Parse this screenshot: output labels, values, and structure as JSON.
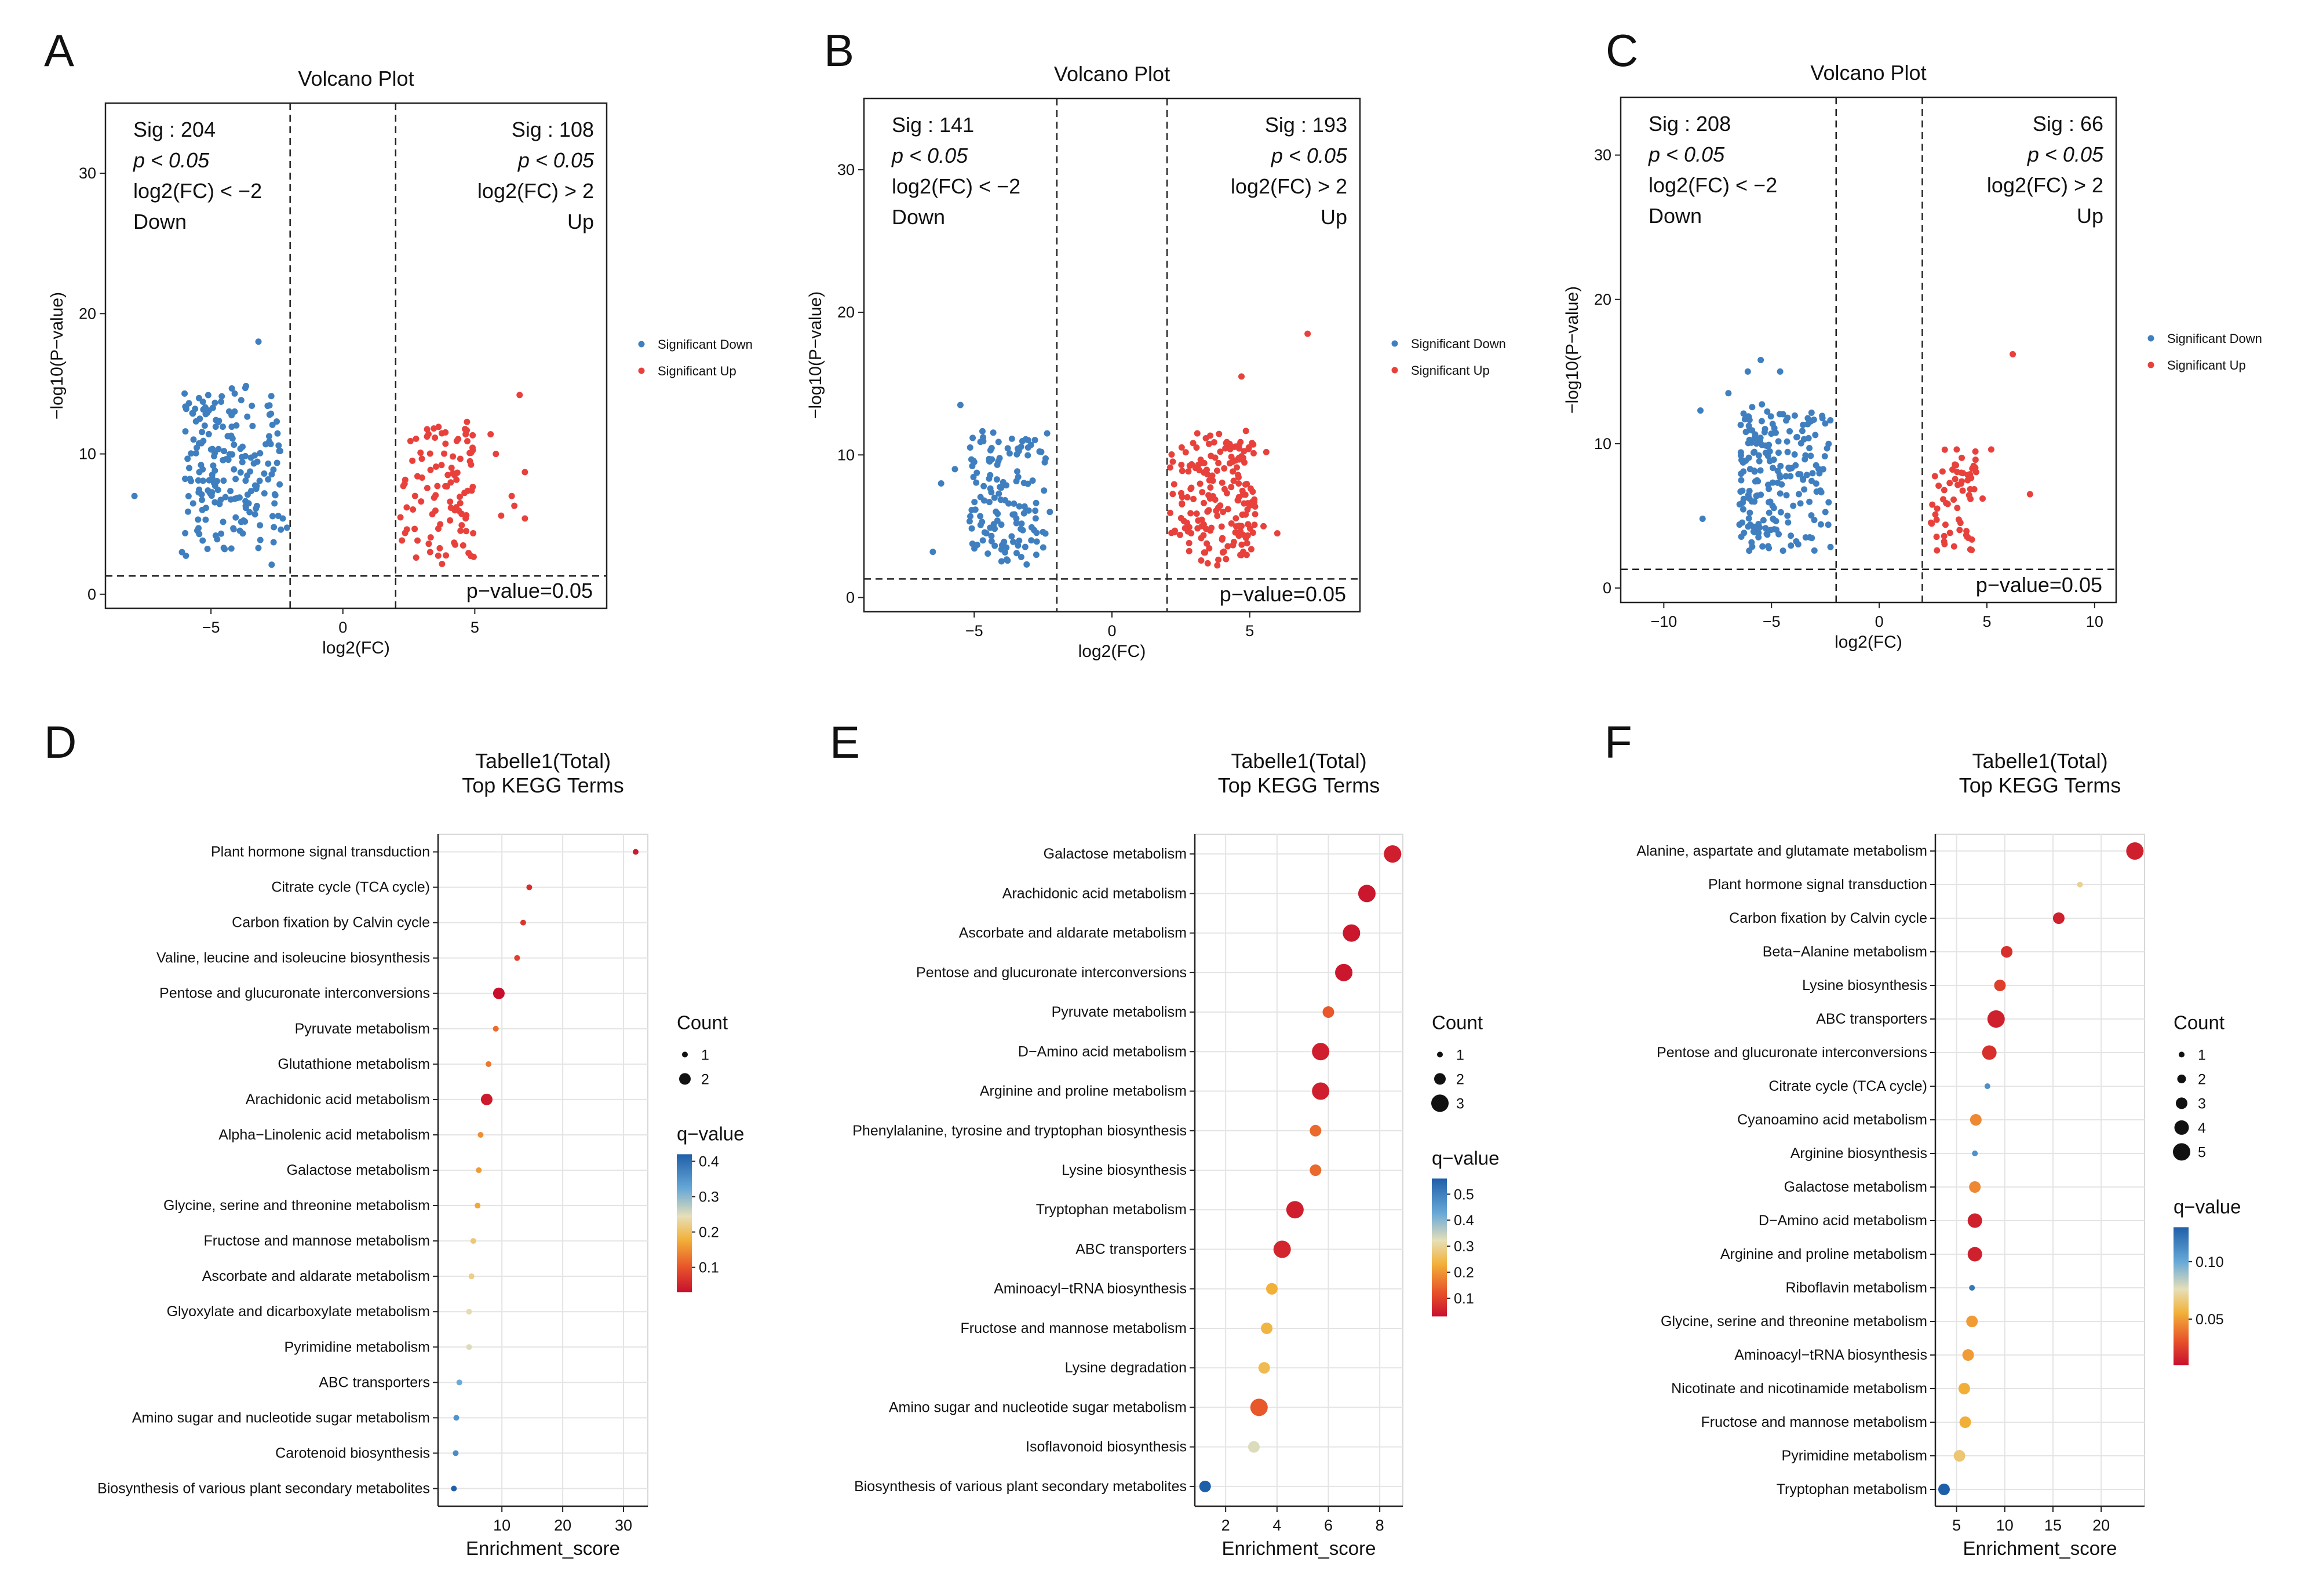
{
  "figure": {
    "panel_letters": [
      "A",
      "B",
      "C",
      "D",
      "E",
      "F"
    ]
  },
  "chart_data": [
    {
      "panel": "A",
      "type": "scatter",
      "title": "Volcano Plot",
      "xlabel": "log2(FC)",
      "ylabel": "−log10(P−value)",
      "xlim": [
        -9,
        10
      ],
      "ylim": [
        -1,
        35
      ],
      "xticks": [
        -5,
        0,
        5
      ],
      "xticklabels": [
        "−5",
        "0",
        "5"
      ],
      "yticks": [
        0,
        10,
        20,
        30
      ],
      "yticklabels": [
        "0",
        "10",
        "20",
        "30"
      ],
      "vlines": [
        -2,
        2
      ],
      "hline": 1.3,
      "annot_down": [
        "Sig : 204",
        "p < 0.05",
        "log2(FC) < −2",
        "Down"
      ],
      "annot_up": [
        "Sig : 108",
        "p < 0.05",
        "log2(FC) > 2",
        "Up"
      ],
      "pvalue_label": "p−value=0.05",
      "legend": [
        "Significant Down",
        "Significant Up"
      ],
      "colors": {
        "down": "#3f7fbf",
        "up": "#e8413c"
      },
      "down": {
        "count": 204,
        "x": [
          -6,
          -2.1
        ],
        "y": [
          2,
          15
        ],
        "outliers": [
          [
            -3.2,
            18
          ],
          [
            -7.9,
            7
          ],
          [
            -6.1,
            3
          ],
          [
            -6,
            14.3
          ],
          [
            -4.1,
            14.3
          ]
        ]
      },
      "up": {
        "count": 108,
        "x": [
          2.1,
          5
        ],
        "y": [
          2,
          13
        ],
        "outliers": [
          [
            6.7,
            14.2
          ],
          [
            6.9,
            8.7
          ],
          [
            6.5,
            6.3
          ],
          [
            6.9,
            5.4
          ],
          [
            6,
            5.6
          ],
          [
            5.8,
            10
          ],
          [
            6.4,
            7
          ],
          [
            5.6,
            11.4
          ]
        ]
      }
    },
    {
      "panel": "B",
      "type": "scatter",
      "title": "Volcano Plot",
      "xlabel": "log2(FC)",
      "ylabel": "−log10(P−value)",
      "xlim": [
        -9,
        9
      ],
      "ylim": [
        -1,
        35
      ],
      "xticks": [
        -5,
        0,
        5
      ],
      "xticklabels": [
        "−5",
        "0",
        "5"
      ],
      "yticks": [
        0,
        10,
        20,
        30
      ],
      "yticklabels": [
        "0",
        "10",
        "20",
        "30"
      ],
      "vlines": [
        -2,
        2
      ],
      "hline": 1.3,
      "annot_down": [
        "Sig : 141",
        "p < 0.05",
        "log2(FC) < −2",
        "Down"
      ],
      "annot_up": [
        "Sig : 193",
        "p < 0.05",
        "log2(FC) > 2",
        "Up"
      ],
      "pvalue_label": "p−value=0.05",
      "legend": [
        "Significant Down",
        "Significant Up"
      ],
      "colors": {
        "down": "#3f7fbf",
        "up": "#e8413c"
      },
      "down": {
        "count": 141,
        "x": [
          -5.2,
          -2.1
        ],
        "y": [
          2,
          12
        ],
        "outliers": [
          [
            -6.5,
            3.2
          ],
          [
            -6.2,
            8
          ],
          [
            -5.5,
            13.5
          ],
          [
            -5.7,
            9
          ]
        ]
      },
      "up": {
        "count": 193,
        "x": [
          2.1,
          5.2
        ],
        "y": [
          2,
          12
        ],
        "outliers": [
          [
            7.1,
            18.5
          ],
          [
            4.7,
            15.5
          ],
          [
            5.6,
            10.2
          ],
          [
            6,
            4.5
          ],
          [
            5.5,
            5
          ]
        ]
      }
    },
    {
      "panel": "C",
      "type": "scatter",
      "title": "Volcano Plot",
      "xlabel": "log2(FC)",
      "ylabel": "−log10(P−value)",
      "xlim": [
        -12,
        11
      ],
      "ylim": [
        -1,
        34
      ],
      "xticks": [
        -10,
        -5,
        0,
        5,
        10
      ],
      "xticklabels": [
        "−10",
        "−5",
        "0",
        "5",
        "10"
      ],
      "yticks": [
        0,
        10,
        20,
        30
      ],
      "yticklabels": [
        "0",
        "10",
        "20",
        "30"
      ],
      "vlines": [
        -2,
        2
      ],
      "hline": 1.3,
      "annot_down": [
        "Sig : 208",
        "p < 0.05",
        "log2(FC) < −2",
        "Down"
      ],
      "annot_up": [
        "Sig : 66",
        "p < 0.05",
        "log2(FC) > 2",
        "Up"
      ],
      "pvalue_label": "p−value=0.05",
      "legend": [
        "Significant Down",
        "Significant Up"
      ],
      "colors": {
        "down": "#3f7fbf",
        "up": "#e8413c"
      },
      "down": {
        "count": 208,
        "x": [
          -6.5,
          -2.1
        ],
        "y": [
          2,
          13
        ],
        "outliers": [
          [
            -8.3,
            12.3
          ],
          [
            -8.2,
            4.8
          ],
          [
            -5.5,
            15.8
          ],
          [
            -6.1,
            15
          ],
          [
            -7,
            13.5
          ],
          [
            -4.6,
            15
          ]
        ]
      },
      "up": {
        "count": 66,
        "x": [
          2.1,
          4.5
        ],
        "y": [
          2,
          10
        ],
        "outliers": [
          [
            6.2,
            16.2
          ],
          [
            7,
            6.5
          ],
          [
            5.2,
            9.6
          ],
          [
            4.8,
            6.2
          ],
          [
            3.6,
            9.6
          ]
        ]
      }
    },
    {
      "panel": "D",
      "type": "scatter",
      "subtype": "bubble",
      "title": "Tabelle1(Total)",
      "subtitle": "Top KEGG Terms",
      "xlabel": "Enrichment_score",
      "xlim": [
        -0.5,
        34
      ],
      "xticks": [
        10,
        20,
        30
      ],
      "xticklabels": [
        "10",
        "20",
        "30"
      ],
      "count_title": "Count",
      "count_levels": [
        1,
        2
      ],
      "qvalue_title": "q−value",
      "q_range": [
        0.03,
        0.42
      ],
      "q_ticks": [
        "0.4",
        "0.3",
        "0.2",
        "0.1"
      ],
      "terms": [
        "Plant hormone signal transduction",
        "Citrate cycle (TCA cycle)",
        "Carbon fixation by Calvin cycle",
        "Valine, leucine and isoleucine biosynthesis",
        "Pentose and glucuronate interconversions",
        "Pyruvate metabolism",
        "Glutathione metabolism",
        "Arachidonic acid metabolism",
        "Alpha−Linolenic acid metabolism",
        "Galactose metabolism",
        "Glycine, serine and threonine metabolism",
        "Fructose and mannose metabolism",
        "Ascorbate and aldarate metabolism",
        "Glyoxylate and dicarboxylate metabolism",
        "Pyrimidine metabolism",
        "ABC transporters",
        "Amino sugar and nucleotide sugar metabolism",
        "Carotenoid biosynthesis",
        "Biosynthesis of various plant secondary metabolites"
      ],
      "enrichment": [
        32,
        14.5,
        13.5,
        12.5,
        9.5,
        9,
        7.8,
        7.5,
        6.5,
        6.2,
        6,
        5.3,
        5,
        4.6,
        4.6,
        3,
        2.5,
        2.4,
        2.1
      ],
      "count": [
        1,
        1,
        1,
        1,
        2,
        1,
        1,
        2,
        1,
        1,
        1,
        1,
        1,
        1,
        1,
        1,
        1,
        1,
        1
      ],
      "qvalue": [
        0.04,
        0.06,
        0.07,
        0.08,
        0.03,
        0.12,
        0.13,
        0.04,
        0.15,
        0.16,
        0.17,
        0.21,
        0.22,
        0.24,
        0.25,
        0.32,
        0.35,
        0.36,
        0.42
      ]
    },
    {
      "panel": "E",
      "type": "scatter",
      "subtype": "bubble",
      "title": "Tabelle1(Total)",
      "subtitle": "Top KEGG Terms",
      "xlabel": "Enrichment_score",
      "xlim": [
        0.8,
        8.9
      ],
      "xticks": [
        2,
        4,
        6,
        8
      ],
      "xticklabels": [
        "2",
        "4",
        "6",
        "8"
      ],
      "count_title": "Count",
      "count_levels": [
        1,
        2,
        3
      ],
      "qvalue_title": "q−value",
      "q_range": [
        0.03,
        0.56
      ],
      "q_ticks": [
        "0.5",
        "0.4",
        "0.3",
        "0.2",
        "0.1"
      ],
      "terms": [
        "Galactose metabolism",
        "Arachidonic acid metabolism",
        "Ascorbate and aldarate metabolism",
        "Pentose and glucuronate interconversions",
        "Pyruvate metabolism",
        "D−Amino acid metabolism",
        "Arginine and proline metabolism",
        "Phenylalanine, tyrosine and tryptophan biosynthesis",
        "Lysine biosynthesis",
        "Tryptophan metabolism",
        "ABC transporters",
        "Aminoacyl−tRNA biosynthesis",
        "Fructose and mannose metabolism",
        "Lysine degradation",
        "Amino sugar and nucleotide sugar metabolism",
        "Isoflavonoid biosynthesis",
        "Biosynthesis of various plant secondary metabolites"
      ],
      "enrichment": [
        8.5,
        7.5,
        6.9,
        6.6,
        6,
        5.7,
        5.7,
        5.5,
        5.5,
        4.7,
        4.2,
        3.8,
        3.6,
        3.5,
        3.3,
        3.1,
        1.2
      ],
      "count": [
        3,
        3,
        3,
        3,
        2,
        3,
        3,
        2,
        2,
        3,
        3,
        2,
        2,
        2,
        3,
        2,
        2
      ],
      "qvalue": [
        0.05,
        0.04,
        0.04,
        0.04,
        0.13,
        0.05,
        0.05,
        0.15,
        0.15,
        0.05,
        0.06,
        0.23,
        0.24,
        0.25,
        0.13,
        0.33,
        0.56
      ]
    },
    {
      "panel": "F",
      "type": "scatter",
      "subtype": "bubble",
      "title": "Tabelle1(Total)",
      "subtitle": "Top KEGG Terms",
      "xlabel": "Enrichment_score",
      "xlim": [
        2.8,
        24.5
      ],
      "xticks": [
        5,
        10,
        15,
        20
      ],
      "xticklabels": [
        "5",
        "10",
        "15",
        "20"
      ],
      "count_title": "Count",
      "count_levels": [
        1,
        2,
        3,
        4,
        5
      ],
      "qvalue_title": "q−value",
      "q_range": [
        0.01,
        0.13
      ],
      "q_ticks": [
        "0.10",
        "0.05"
      ],
      "terms": [
        "Alanine, aspartate and glutamate metabolism",
        "Plant hormone signal transduction",
        "Carbon fixation by Calvin cycle",
        "Beta−Alanine metabolism",
        "Lysine biosynthesis",
        "ABC transporters",
        "Pentose and glucuronate interconversions",
        "Citrate cycle (TCA cycle)",
        "Cyanoamino acid metabolism",
        "Arginine biosynthesis",
        "Galactose metabolism",
        "D−Amino acid metabolism",
        "Arginine and proline metabolism",
        "Riboflavin metabolism",
        "Glycine, serine and threonine metabolism",
        "Aminoacyl−tRNA biosynthesis",
        "Nicotinate and nicotinamide metabolism",
        "Fructose and mannose metabolism",
        "Pyrimidine metabolism",
        "Tryptophan metabolism"
      ],
      "enrichment": [
        23.5,
        17.8,
        15.6,
        10.2,
        9.5,
        9.1,
        8.4,
        8.2,
        7,
        6.9,
        6.9,
        6.9,
        6.9,
        6.6,
        6.6,
        6.2,
        5.8,
        5.9,
        5.3,
        3.7
      ],
      "count": [
        5,
        1,
        3,
        3,
        3,
        5,
        4,
        1,
        3,
        1,
        3,
        4,
        4,
        1,
        3,
        3,
        3,
        3,
        3,
        3
      ],
      "qvalue": [
        0.015,
        0.07,
        0.015,
        0.02,
        0.025,
        0.015,
        0.02,
        0.11,
        0.045,
        0.11,
        0.045,
        0.015,
        0.015,
        0.12,
        0.05,
        0.05,
        0.055,
        0.055,
        0.065,
        0.13
      ]
    }
  ]
}
